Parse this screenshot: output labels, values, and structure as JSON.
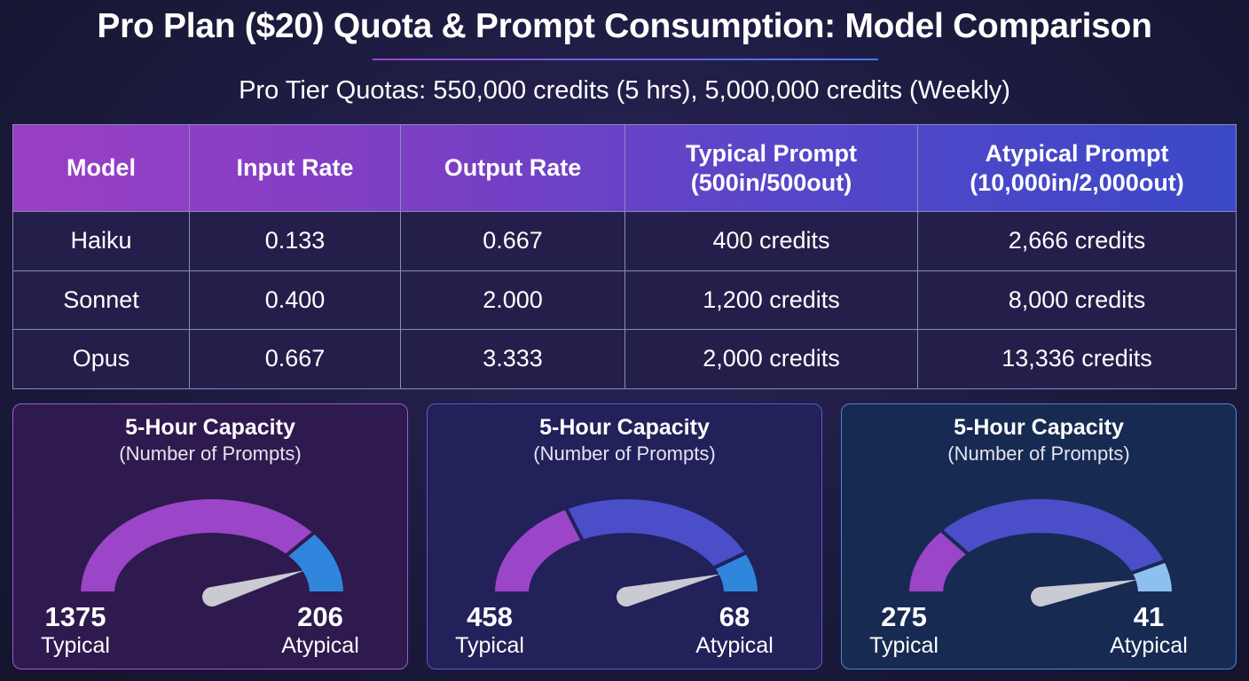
{
  "title": "Pro Plan ($20) Quota & Prompt Consumption: Model Comparison",
  "subtitle": "Pro Tier Quotas: 550,000 credits (5 hrs), 5,000,000 credits (Weekly)",
  "chart_data": [
    {
      "type": "table",
      "columns": [
        "Model",
        "Input Rate",
        "Output Rate",
        "Typical Prompt\n(500in/500out)",
        "Atypical Prompt\n(10,000in/2,000out)"
      ],
      "rows": [
        [
          "Haiku",
          "0.133",
          "0.667",
          "400 credits",
          "2,666 credits"
        ],
        [
          "Sonnet",
          "0.400",
          "2.000",
          "1,200 credits",
          "8,000 credits"
        ],
        [
          "Opus",
          "0.667",
          "3.333",
          "2,000 credits",
          "13,336 credits"
        ]
      ]
    },
    {
      "type": "gauge",
      "title": "5-Hour Capacity",
      "subtitle": "(Number of Prompts)",
      "typical": 1375,
      "atypical": 206,
      "typical_label": "Typical",
      "atypical_label": "Atypical",
      "segments": [
        {
          "color": "#9b45c8",
          "to": 0.78
        },
        {
          "color": "#2f86dc",
          "to": 1
        }
      ],
      "needle": 0.88
    },
    {
      "type": "gauge",
      "title": "5-Hour Capacity",
      "subtitle": "(Number of Prompts)",
      "typical": 458,
      "atypical": 68,
      "typical_label": "Typical",
      "atypical_label": "Atypical",
      "segments": [
        {
          "color": "#9b45c8",
          "to": 0.35
        },
        {
          "color": "#4a4ec8",
          "to": 0.86
        },
        {
          "color": "#2f86dc",
          "to": 1
        }
      ],
      "needle": 0.9
    },
    {
      "type": "gauge",
      "title": "5-Hour Capacity",
      "subtitle": "(Number of Prompts)",
      "typical": 275,
      "atypical": 41,
      "typical_label": "Typical",
      "atypical_label": "Atypical",
      "segments": [
        {
          "color": "#9b45c8",
          "to": 0.23
        },
        {
          "color": "#4a4ec8",
          "to": 0.89
        },
        {
          "color": "#8ec0ee",
          "to": 1
        }
      ],
      "needle": 0.93
    }
  ]
}
